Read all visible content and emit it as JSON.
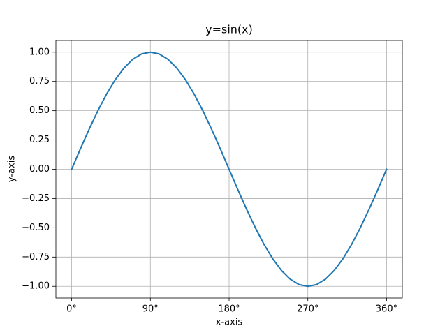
{
  "chart_data": {
    "type": "line",
    "title": "y=sin(x)",
    "x_label": "x-axis",
    "y_label": "y-axis",
    "x": [
      0,
      10,
      20,
      30,
      40,
      50,
      60,
      70,
      80,
      90,
      100,
      110,
      120,
      130,
      140,
      150,
      160,
      170,
      180,
      190,
      200,
      210,
      220,
      230,
      240,
      250,
      260,
      270,
      280,
      290,
      300,
      310,
      320,
      330,
      340,
      350,
      360
    ],
    "series": [
      {
        "color": "#1f77b4",
        "values": [
          0,
          0.174,
          0.342,
          0.5,
          0.643,
          0.766,
          0.866,
          0.94,
          0.985,
          1,
          0.985,
          0.94,
          0.866,
          0.766,
          0.643,
          0.5,
          0.342,
          0.174,
          0,
          -0.174,
          -0.342,
          -0.5,
          -0.643,
          -0.766,
          -0.866,
          -0.94,
          -0.985,
          -1,
          -0.985,
          -0.94,
          -0.866,
          -0.766,
          -0.643,
          -0.5,
          -0.342,
          -0.174,
          0
        ]
      }
    ],
    "xlim": [
      -18,
      378
    ],
    "ylim": [
      -1.1,
      1.1
    ],
    "xticks": [
      {
        "value": 0,
        "label": "0°"
      },
      {
        "value": 90,
        "label": "90°"
      },
      {
        "value": 180,
        "label": "180°"
      },
      {
        "value": 270,
        "label": "270°"
      },
      {
        "value": 360,
        "label": "360°"
      }
    ],
    "yticks": [
      {
        "value": -1,
        "label": "−1.00"
      },
      {
        "value": -0.75,
        "label": "−0.75"
      },
      {
        "value": -0.5,
        "label": "−0.50"
      },
      {
        "value": -0.25,
        "label": "−0.25"
      },
      {
        "value": 0,
        "label": "0.00"
      },
      {
        "value": 0.25,
        "label": "0.25"
      },
      {
        "value": 0.5,
        "label": "0.50"
      },
      {
        "value": 0.75,
        "label": "0.75"
      },
      {
        "value": 1,
        "label": "1.00"
      }
    ],
    "grid": true
  }
}
